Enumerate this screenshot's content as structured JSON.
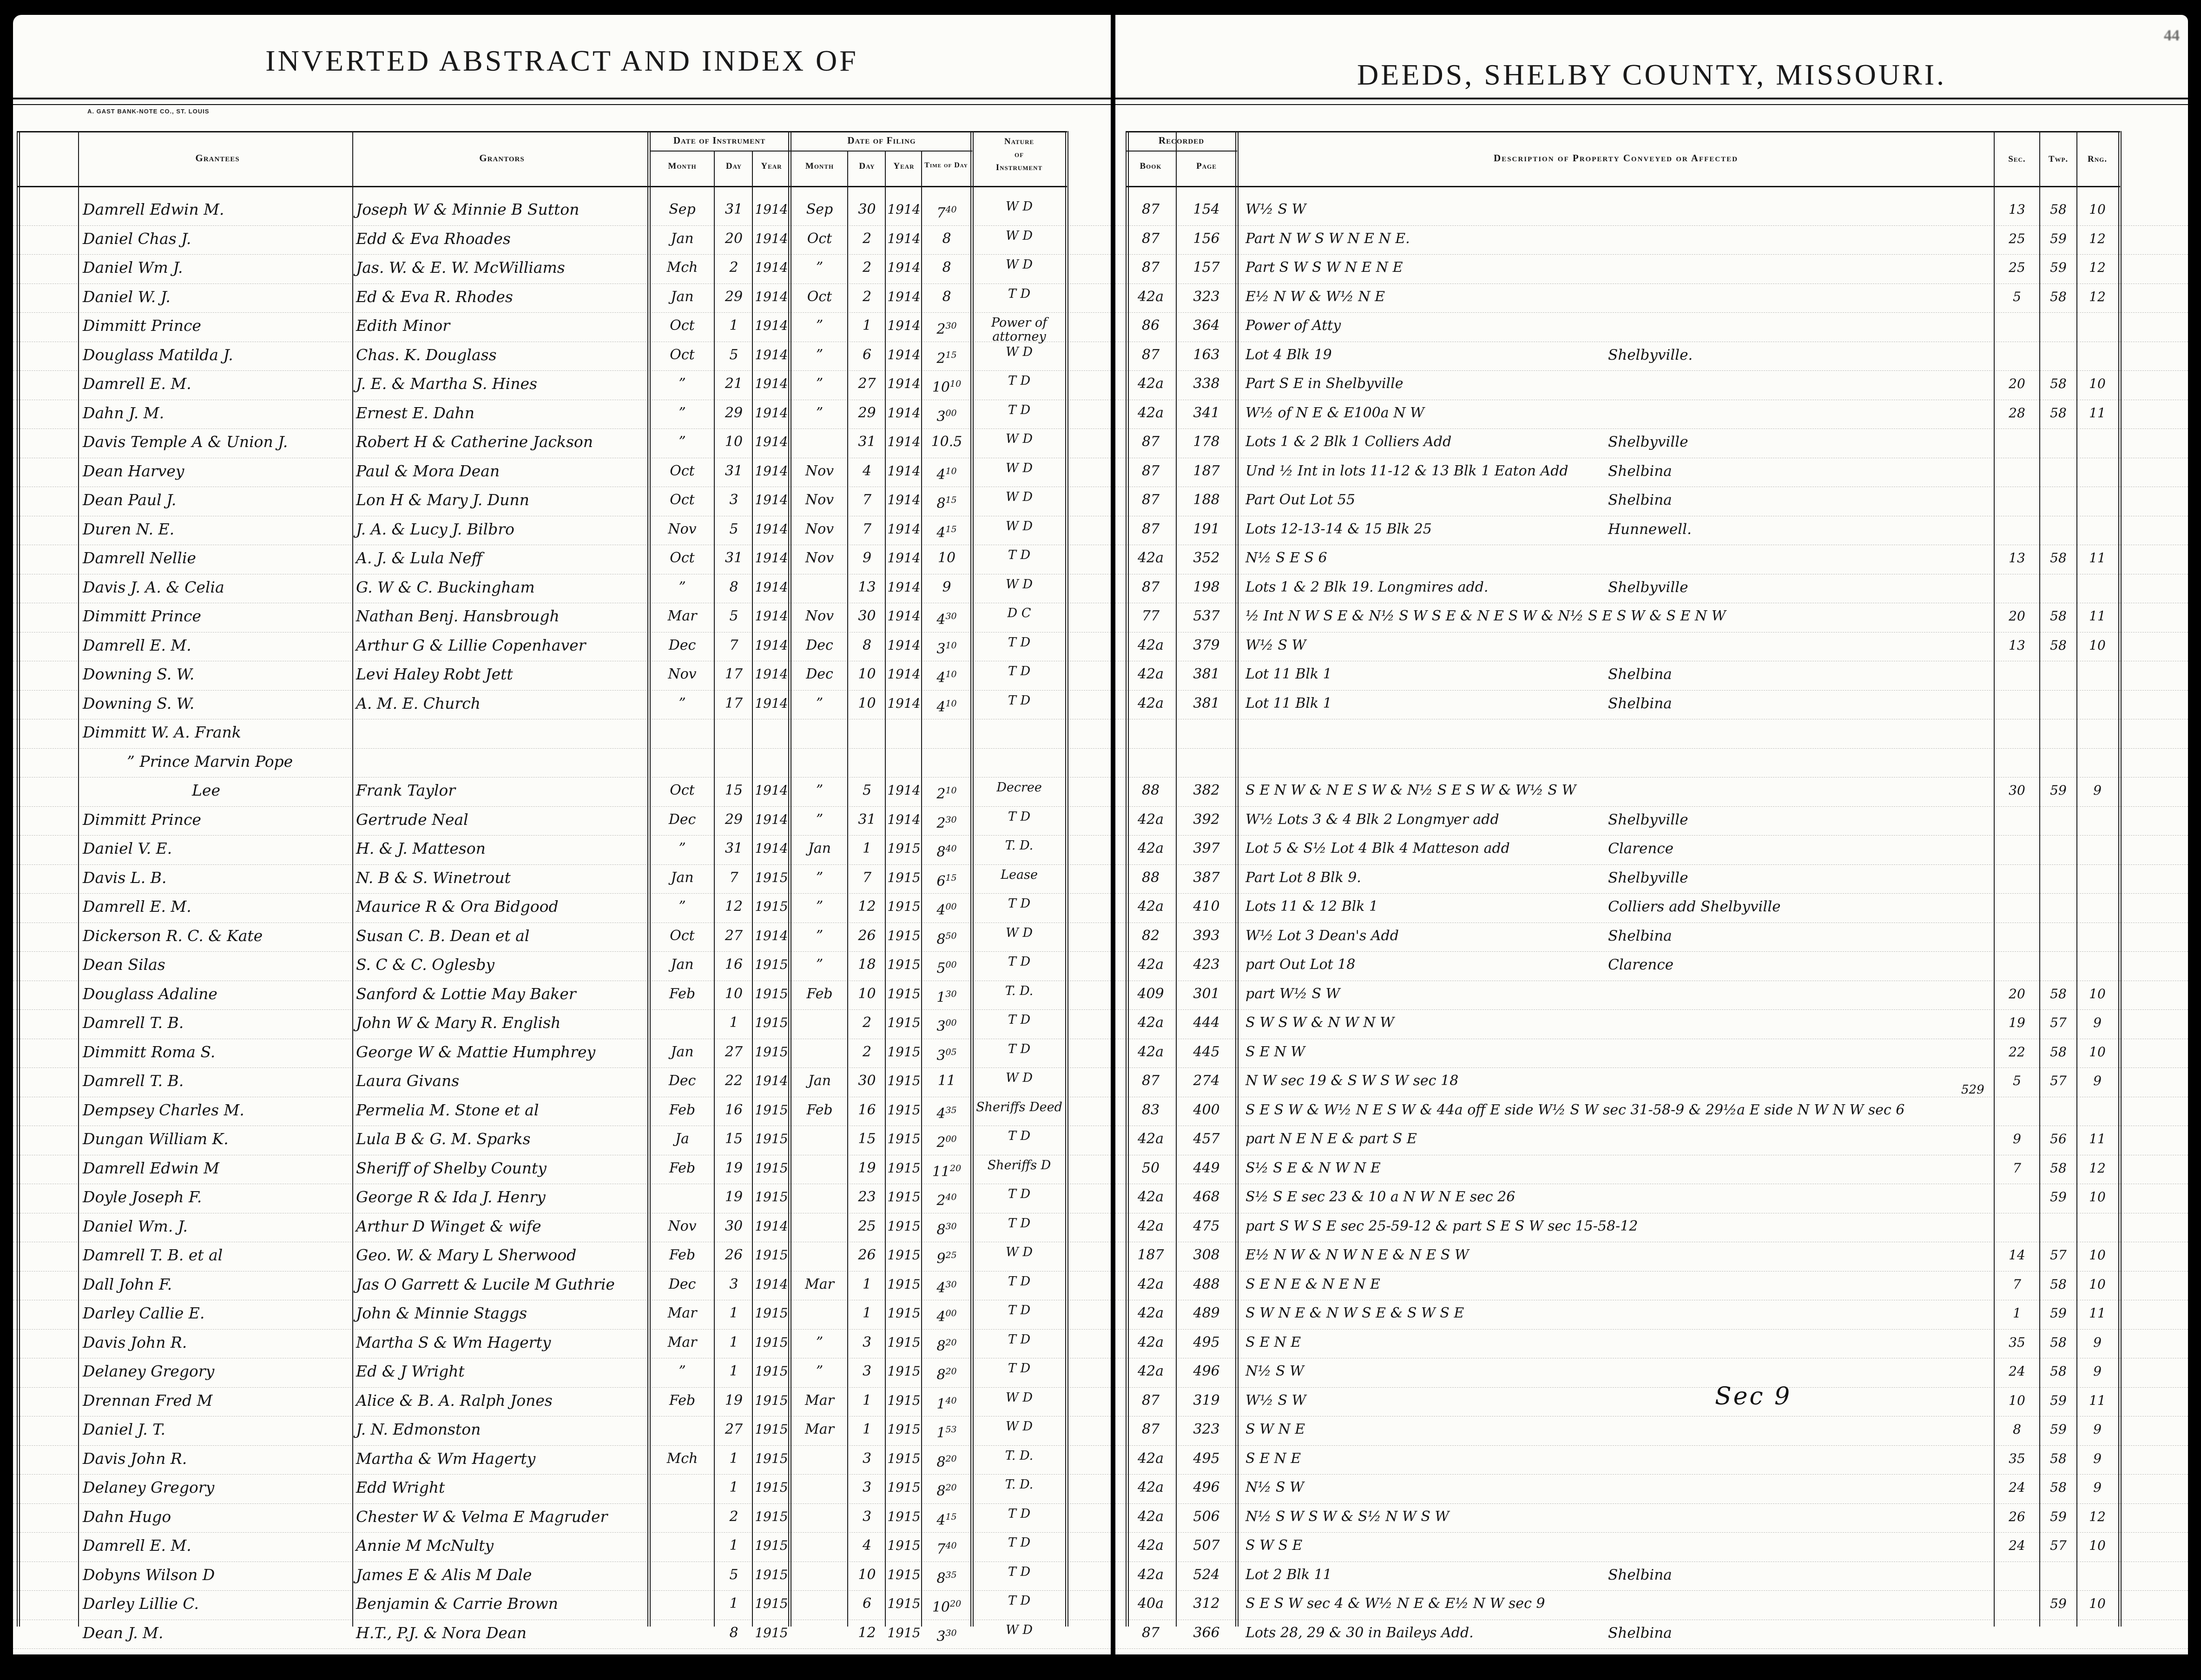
{
  "page_number": "44",
  "left_page": {
    "title": "INVERTED ABSTRACT AND INDEX OF",
    "printer_credit": "A. GAST BANK-NOTE CO., ST. LOUIS",
    "headers": {
      "grantees": "Grantees",
      "grantors": "Grantors",
      "date_of_instrument": "Date of Instrument",
      "date_of_filing": "Date of Filing",
      "month": "Month",
      "day": "Day",
      "year": "Year",
      "time_of_day": "Time of Day",
      "nature_1": "Nature",
      "nature_2": "of",
      "nature_3": "Instrument"
    }
  },
  "right_page": {
    "title": "DEEDS, SHELBY COUNTY, MISSOURI.",
    "headers": {
      "recorded": "Recorded",
      "book": "Book",
      "page": "Page",
      "description": "Description of Property Conveyed or Affected",
      "sec": "Sec.",
      "twp": "Twp.",
      "rng": "Rng."
    }
  },
  "annotations": {
    "sec9": "Sec 9",
    "num529": "529"
  },
  "rows": [
    {
      "g": "Damrell Edwin M.",
      "gr": "Joseph W & Minnie B Sutton",
      "im": "Sep",
      "id": "31",
      "iy": "1914",
      "fm": "Sep",
      "fd": "30",
      "fy": "1914",
      "ft": "7^40",
      "n": "W D",
      "bk": "87",
      "pg": "154",
      "d": "W½ S W",
      "sec": "13",
      "twp": "58",
      "rng": "10"
    },
    {
      "g": "Daniel Chas J.",
      "gr": "Edd & Eva Rhoades",
      "im": "Jan",
      "id": "20",
      "iy": "1914",
      "fm": "Oct",
      "fd": "2",
      "fy": "1914",
      "ft": "8",
      "n": "W D",
      "bk": "87",
      "pg": "156",
      "d": "Part N W S W N E N E.",
      "sec": "25",
      "twp": "59",
      "rng": "12"
    },
    {
      "g": "Daniel Wm J.",
      "gr": "Jas. W. & E. W. McWilliams",
      "im": "Mch",
      "id": "2",
      "iy": "1914",
      "fm": "”",
      "fd": "2",
      "fy": "1914",
      "ft": "8",
      "n": "W D",
      "bk": "87",
      "pg": "157",
      "d": "Part S W S W N E N E",
      "sec": "25",
      "twp": "59",
      "rng": "12"
    },
    {
      "g": "Daniel W. J.",
      "gr": "Ed & Eva R. Rhodes",
      "im": "Jan",
      "id": "29",
      "iy": "1914",
      "fm": "Oct",
      "fd": "2",
      "fy": "1914",
      "ft": "8",
      "n": "T D",
      "bk": "42a",
      "pg": "323",
      "d": "E½ N W & W½ N E",
      "sec": "5",
      "twp": "58",
      "rng": "12"
    },
    {
      "g": "Dimmitt Prince",
      "gr": "Edith Minor",
      "im": "Oct",
      "id": "1",
      "iy": "1914",
      "fm": "”",
      "fd": "1",
      "fy": "1914",
      "ft": "2^30",
      "n": "Power of attorney",
      "bk": "86",
      "pg": "364",
      "d": "Power of Atty"
    },
    {
      "g": "Douglass Matilda J.",
      "gr": "Chas. K. Douglass",
      "im": "Oct",
      "id": "5",
      "iy": "1914",
      "fm": "”",
      "fd": "6",
      "fy": "1914",
      "ft": "2^15",
      "n": "W D",
      "bk": "87",
      "pg": "163",
      "d": "Lot 4 Blk 19",
      "loc": "Shelbyville."
    },
    {
      "g": "Damrell E. M.",
      "gr": "J. E. & Martha S. Hines",
      "im": "”",
      "id": "21",
      "iy": "1914",
      "fm": "”",
      "fd": "27",
      "fy": "1914",
      "ft": "10^10",
      "n": "T D",
      "bk": "42a",
      "pg": "338",
      "d": "Part S E in Shelbyville",
      "sec": "20",
      "twp": "58",
      "rng": "10"
    },
    {
      "g": "Dahn J. M.",
      "gr": "Ernest E. Dahn",
      "im": "”",
      "id": "29",
      "iy": "1914",
      "fm": "”",
      "fd": "29",
      "fy": "1914",
      "ft": "3^00",
      "n": "T D",
      "bk": "42a",
      "pg": "341",
      "d": "W½ of N E & E100a N W",
      "sec": "28",
      "twp": "58",
      "rng": "11"
    },
    {
      "g": "Davis Temple A & Union J.",
      "gr": "Robert H & Catherine Jackson",
      "im": "”",
      "id": "10",
      "iy": "1914",
      "fm": "",
      "fd": "31",
      "fy": "1914",
      "ft": "10.5",
      "n": "W D",
      "bk": "87",
      "pg": "178",
      "d": "Lots 1 & 2 Blk 1 Colliers Add",
      "loc": "Shelbyville"
    },
    {
      "g": "Dean Harvey",
      "gr": "Paul & Mora Dean",
      "im": "Oct",
      "id": "31",
      "iy": "1914",
      "fm": "Nov",
      "fd": "4",
      "fy": "1914",
      "ft": "4^10",
      "n": "W D",
      "bk": "87",
      "pg": "187",
      "d": "Und ½ Int in lots 11-12 & 13 Blk 1 Eaton Add",
      "loc": "Shelbina"
    },
    {
      "g": "Dean Paul J.",
      "gr": "Lon H & Mary J. Dunn",
      "im": "Oct",
      "id": "3",
      "iy": "1914",
      "fm": "Nov",
      "fd": "7",
      "fy": "1914",
      "ft": "8^15",
      "n": "W D",
      "bk": "87",
      "pg": "188",
      "d": "Part Out Lot 55",
      "loc": "Shelbina"
    },
    {
      "g": "Duren N. E.",
      "gr": "J. A. & Lucy J. Bilbro",
      "im": "Nov",
      "id": "5",
      "iy": "1914",
      "fm": "Nov",
      "fd": "7",
      "fy": "1914",
      "ft": "4^15",
      "n": "W D",
      "bk": "87",
      "pg": "191",
      "d": "Lots 12-13-14 & 15 Blk 25",
      "loc": "Hunnewell."
    },
    {
      "g": "Damrell Nellie",
      "gr": "A. J. & Lula Neff",
      "im": "Oct",
      "id": "31",
      "iy": "1914",
      "fm": "Nov",
      "fd": "9",
      "fy": "1914",
      "ft": "10",
      "n": "T D",
      "bk": "42a",
      "pg": "352",
      "d": "N½ S E S 6",
      "sec": "13",
      "twp": "58",
      "rng": "11"
    },
    {
      "g": "Davis J. A. & Celia",
      "gr": "G. W & C. Buckingham",
      "im": "”",
      "id": "8",
      "iy": "1914",
      "fm": "",
      "fd": "13",
      "fy": "1914",
      "ft": "9",
      "n": "W D",
      "bk": "87",
      "pg": "198",
      "d": "Lots 1 & 2 Blk 19. Longmires add.",
      "loc": "Shelbyville"
    },
    {
      "g": "Dimmitt Prince",
      "gr": "Nathan Benj. Hansbrough",
      "im": "Mar",
      "id": "5",
      "iy": "1914",
      "fm": "Nov",
      "fd": "30",
      "fy": "1914",
      "ft": "4^30",
      "n": "D C",
      "bk": "77",
      "pg": "537",
      "d": "½ Int N W S E & N½ S W S E & N E S W & N½ S E S W & S E N W",
      "sec": "20",
      "twp": "58",
      "rng": "11"
    },
    {
      "g": "Damrell E. M.",
      "gr": "Arthur G & Lillie Copenhaver",
      "im": "Dec",
      "id": "7",
      "iy": "1914",
      "fm": "Dec",
      "fd": "8",
      "fy": "1914",
      "ft": "3^10",
      "n": "T D",
      "bk": "42a",
      "pg": "379",
      "d": "W½ S W",
      "sec": "13",
      "twp": "58",
      "rng": "10"
    },
    {
      "g": "Downing S. W.",
      "gr": "Levi Haley Robt Jett",
      "im": "Nov",
      "id": "17",
      "iy": "1914",
      "fm": "Dec",
      "fd": "10",
      "fy": "1914",
      "ft": "4^10",
      "n": "T D",
      "bk": "42a",
      "pg": "381",
      "d": "Lot 11 Blk 1",
      "loc": "Shelbina"
    },
    {
      "g": "Downing S. W.",
      "gr": "A. M. E. Church",
      "im": "”",
      "id": "17",
      "iy": "1914",
      "fm": "”",
      "fd": "10",
      "fy": "1914",
      "ft": "4^10",
      "n": "T D",
      "bk": "42a",
      "pg": "381",
      "d": "Lot 11 Blk 1",
      "loc": "Shelbina"
    },
    {
      "g": "Dimmitt W. A. Frank",
      "gr": ""
    },
    {
      "g": "” Prince Marvin Pope",
      "gr": ""
    },
    {
      "g": "Lee",
      "gr": "Frank Taylor",
      "im": "Oct",
      "id": "15",
      "iy": "1914",
      "fm": "”",
      "fd": "5",
      "fy": "1914",
      "ft": "2^10",
      "n": "Decree",
      "bk": "88",
      "pg": "382",
      "d": "S E N W & N E S W & N½ S E S W & W½ S W",
      "sec": "30",
      "twp": "59",
      "rng": "9"
    },
    {
      "g": "Dimmitt Prince",
      "gr": "Gertrude Neal",
      "im": "Dec",
      "id": "29",
      "iy": "1914",
      "fm": "”",
      "fd": "31",
      "fy": "1914",
      "ft": "2^30",
      "n": "T D",
      "bk": "42a",
      "pg": "392",
      "d": "W½ Lots 3 & 4 Blk 2 Longmyer add",
      "loc": "Shelbyville"
    },
    {
      "g": "Daniel V. E.",
      "gr": "H. & J. Matteson",
      "im": "”",
      "id": "31",
      "iy": "1914",
      "fm": "Jan",
      "fd": "1",
      "fy": "1915",
      "ft": "8^40",
      "n": "T. D.",
      "bk": "42a",
      "pg": "397",
      "d": "Lot 5 & S½ Lot 4 Blk 4 Matteson add",
      "loc": "Clarence"
    },
    {
      "g": "Davis L. B.",
      "gr": "N. B & S. Winetrout",
      "im": "Jan",
      "id": "7",
      "iy": "1915",
      "fm": "”",
      "fd": "7",
      "fy": "1915",
      "ft": "6^15",
      "n": "Lease",
      "bk": "88",
      "pg": "387",
      "d": "Part Lot 8 Blk 9.",
      "loc": "Shelbyville"
    },
    {
      "g": "Damrell E. M.",
      "gr": "Maurice R & Ora Bidgood",
      "im": "”",
      "id": "12",
      "iy": "1915",
      "fm": "”",
      "fd": "12",
      "fy": "1915",
      "ft": "4^00",
      "n": "T D",
      "bk": "42a",
      "pg": "410",
      "d": "Lots 11 & 12 Blk 1",
      "loc": "Colliers add   Shelbyville"
    },
    {
      "g": "Dickerson R. C. & Kate",
      "gr": "Susan C. B. Dean et al",
      "im": "Oct",
      "id": "27",
      "iy": "1914",
      "fm": "”",
      "fd": "26",
      "fy": "1915",
      "ft": "8^50",
      "n": "W D",
      "bk": "82",
      "pg": "393",
      "d": "W½ Lot 3 Dean's Add",
      "loc": "Shelbina"
    },
    {
      "g": "Dean Silas",
      "gr": "S. C & C. Oglesby",
      "im": "Jan",
      "id": "16",
      "iy": "1915",
      "fm": "”",
      "fd": "18",
      "fy": "1915",
      "ft": "5^00",
      "n": "T D",
      "bk": "42a",
      "pg": "423",
      "d": "part Out Lot 18",
      "loc": "Clarence"
    },
    {
      "g": "Douglass Adaline",
      "gr": "Sanford & Lottie May Baker",
      "im": "Feb",
      "id": "10",
      "iy": "1915",
      "fm": "Feb",
      "fd": "10",
      "fy": "1915",
      "ft": "1^30",
      "n": "T. D.",
      "bk": "409",
      "pg": "301",
      "d": "part W½ S W",
      "sec": "20",
      "twp": "58",
      "rng": "10"
    },
    {
      "g": "Damrell T. B.",
      "gr": "John W & Mary R. English",
      "im": "",
      "id": "1",
      "iy": "1915",
      "fm": "",
      "fd": "2",
      "fy": "1915",
      "ft": "3^00",
      "n": "T D",
      "bk": "42a",
      "pg": "444",
      "d": "S W S W & N W N W",
      "sec": "19",
      "twp": "57",
      "rng": "9"
    },
    {
      "g": "Dimmitt Roma S.",
      "gr": "George W & Mattie Humphrey",
      "im": "Jan",
      "id": "27",
      "iy": "1915",
      "fm": "",
      "fd": "2",
      "fy": "1915",
      "ft": "3^05",
      "n": "T D",
      "bk": "42a",
      "pg": "445",
      "d": "S E N W",
      "sec": "22",
      "twp": "58",
      "rng": "10"
    },
    {
      "g": "Damrell T. B.",
      "gr": "Laura Givans",
      "im": "Dec",
      "id": "22",
      "iy": "1914",
      "fm": "Jan",
      "fd": "30",
      "fy": "1915",
      "ft": "11",
      "n": "W D",
      "bk": "87",
      "pg": "274",
      "d": "N W sec 19 & S W S W sec 18",
      "sec": "5",
      "twp": "57",
      "rng": "9"
    },
    {
      "g": "Dempsey Charles M.",
      "gr": "Permelia M. Stone et al",
      "im": "Feb",
      "id": "16",
      "iy": "1915",
      "fm": "Feb",
      "fd": "16",
      "fy": "1915",
      "ft": "4^35",
      "n": "Sheriffs Deed",
      "bk": "83",
      "pg": "400",
      "d": "S E S W & W½ N E S W & 44a off E side W½ S W sec 31-58-9 & 29½a E side N W N W sec 6"
    },
    {
      "g": "Dungan William K.",
      "gr": "Lula B & G. M. Sparks",
      "im": "Ja",
      "id": "15",
      "iy": "1915",
      "fm": "",
      "fd": "15",
      "fy": "1915",
      "ft": "2^00",
      "n": "T D",
      "bk": "42a",
      "pg": "457",
      "d": "part N E N E & part S E",
      "sec": "9",
      "twp": "56",
      "rng": "11"
    },
    {
      "g": "Damrell Edwin M",
      "gr": "Sheriff of Shelby County",
      "im": "Feb",
      "id": "19",
      "iy": "1915",
      "fm": "",
      "fd": "19",
      "fy": "1915",
      "ft": "11^20",
      "n": "Sheriffs D",
      "bk": "50",
      "pg": "449",
      "d": "S½ S E & N W N E",
      "sec": "7",
      "twp": "58",
      "rng": "12"
    },
    {
      "g": "Doyle Joseph F.",
      "gr": "George R & Ida J. Henry",
      "im": "",
      "id": "19",
      "iy": "1915",
      "fm": "",
      "fd": "23",
      "fy": "1915",
      "ft": "2^40",
      "n": "T D",
      "bk": "42a",
      "pg": "468",
      "d": "S½ S E sec 23 & 10 a N W N E sec 26",
      "twp": "59",
      "rng": "10"
    },
    {
      "g": "Daniel Wm. J.",
      "gr": "Arthur D Winget & wife",
      "im": "Nov",
      "id": "30",
      "iy": "1914",
      "fm": "",
      "fd": "25",
      "fy": "1915",
      "ft": "8^30",
      "n": "T D",
      "bk": "42a",
      "pg": "475",
      "d": "part S W S E sec 25-59-12  &  part S E S W sec 15-58-12"
    },
    {
      "g": "Damrell T. B. et al",
      "gr": "Geo. W. & Mary L Sherwood",
      "im": "Feb",
      "id": "26",
      "iy": "1915",
      "fm": "",
      "fd": "26",
      "fy": "1915",
      "ft": "9^25",
      "n": "W D",
      "bk": "187",
      "pg": "308",
      "d": "E½ N W & N W N E & N E S W",
      "sec": "14",
      "twp": "57",
      "rng": "10"
    },
    {
      "g": "Dall John F.",
      "gr": "Jas O Garrett & Lucile M Guthrie",
      "im": "Dec",
      "id": "3",
      "iy": "1914",
      "fm": "Mar",
      "fd": "1",
      "fy": "1915",
      "ft": "4^30",
      "n": "T D",
      "bk": "42a",
      "pg": "488",
      "d": "S E N E & N E N E",
      "sec": "7",
      "twp": "58",
      "rng": "10"
    },
    {
      "g": "Darley Callie E.",
      "gr": "John & Minnie Staggs",
      "im": "Mar",
      "id": "1",
      "iy": "1915",
      "fm": "",
      "fd": "1",
      "fy": "1915",
      "ft": "4^00",
      "n": "T D",
      "bk": "42a",
      "pg": "489",
      "d": "S W N E & N W S E & S W S E",
      "sec": "1",
      "twp": "59",
      "rng": "11"
    },
    {
      "g": "Davis John R.",
      "gr": "Martha S & Wm Hagerty",
      "im": "Mar",
      "id": "1",
      "iy": "1915",
      "fm": "”",
      "fd": "3",
      "fy": "1915",
      "ft": "8^20",
      "n": "T D",
      "bk": "42a",
      "pg": "495",
      "d": "S E N E",
      "sec": "35",
      "twp": "58",
      "rng": "9"
    },
    {
      "g": "Delaney Gregory",
      "gr": "Ed & J Wright",
      "im": "”",
      "id": "1",
      "iy": "1915",
      "fm": "”",
      "fd": "3",
      "fy": "1915",
      "ft": "8^20",
      "n": "T D",
      "bk": "42a",
      "pg": "496",
      "d": "N½ S W",
      "sec": "24",
      "twp": "58",
      "rng": "9"
    },
    {
      "g": "Drennan Fred M",
      "gr": "Alice & B. A. Ralph Jones",
      "im": "Feb",
      "id": "19",
      "iy": "1915",
      "fm": "Mar",
      "fd": "1",
      "fy": "1915",
      "ft": "1^40",
      "n": "W D",
      "bk": "87",
      "pg": "319",
      "d": "W½ S W",
      "sec": "10",
      "twp": "59",
      "rng": "11"
    },
    {
      "g": "Daniel J. T.",
      "gr": "J. N. Edmonston",
      "im": "",
      "id": "27",
      "iy": "1915",
      "fm": "Mar",
      "fd": "1",
      "fy": "1915",
      "ft": "1^53",
      "n": "W D",
      "bk": "87",
      "pg": "323",
      "d": "S W N E",
      "sec": "8",
      "twp": "59",
      "rng": "9"
    },
    {
      "g": "Davis John R.",
      "gr": "Martha & Wm Hagerty",
      "im": "Mch",
      "id": "1",
      "iy": "1915",
      "fm": "",
      "fd": "3",
      "fy": "1915",
      "ft": "8^20",
      "n": "T. D.",
      "bk": "42a",
      "pg": "495",
      "d": "S E N E",
      "sec": "35",
      "twp": "58",
      "rng": "9"
    },
    {
      "g": "Delaney Gregory",
      "gr": "Edd Wright",
      "im": "",
      "id": "1",
      "iy": "1915",
      "fm": "",
      "fd": "3",
      "fy": "1915",
      "ft": "8^20",
      "n": "T. D.",
      "bk": "42a",
      "pg": "496",
      "d": "N½ S W",
      "sec": "24",
      "twp": "58",
      "rng": "9"
    },
    {
      "g": "Dahn Hugo",
      "gr": "Chester W & Velma E Magruder",
      "im": "",
      "id": "2",
      "iy": "1915",
      "fm": "",
      "fd": "3",
      "fy": "1915",
      "ft": "4^15",
      "n": "T D",
      "bk": "42a",
      "pg": "506",
      "d": "N½ S W S W & S½ N W S W",
      "sec": "26",
      "twp": "59",
      "rng": "12"
    },
    {
      "g": "Damrell E. M.",
      "gr": "Annie M McNulty",
      "im": "",
      "id": "1",
      "iy": "1915",
      "fm": "",
      "fd": "4",
      "fy": "1915",
      "ft": "7^40",
      "n": "T D",
      "bk": "42a",
      "pg": "507",
      "d": "S W S E",
      "sec": "24",
      "twp": "57",
      "rng": "10"
    },
    {
      "g": "Dobyns Wilson D",
      "gr": "James E & Alis M Dale",
      "im": "",
      "id": "5",
      "iy": "1915",
      "fm": "",
      "fd": "10",
      "fy": "1915",
      "ft": "8^35",
      "n": "T D",
      "bk": "42a",
      "pg": "524",
      "d": "Lot 2 Blk 11",
      "loc": "Shelbina"
    },
    {
      "g": "Darley Lillie C.",
      "gr": "Benjamin & Carrie Brown",
      "im": "",
      "id": "1",
      "iy": "1915",
      "fm": "",
      "fd": "6",
      "fy": "1915",
      "ft": "10^20",
      "n": "T D",
      "bk": "40a",
      "pg": "312",
      "d": "S E S W sec 4  &  W½ N E  &  E½ N W sec 9",
      "twp": "59",
      "rng": "10"
    },
    {
      "g": "Dean J. M.",
      "gr": "H.T., P.J. & Nora Dean",
      "im": "",
      "id": "8",
      "iy": "1915",
      "fm": "",
      "fd": "12",
      "fy": "1915",
      "ft": "3^30",
      "n": "W D",
      "bk": "87",
      "pg": "366",
      "d": "Lots 28, 29 & 30 in Baileys Add.",
      "loc": "Shelbina"
    }
  ]
}
